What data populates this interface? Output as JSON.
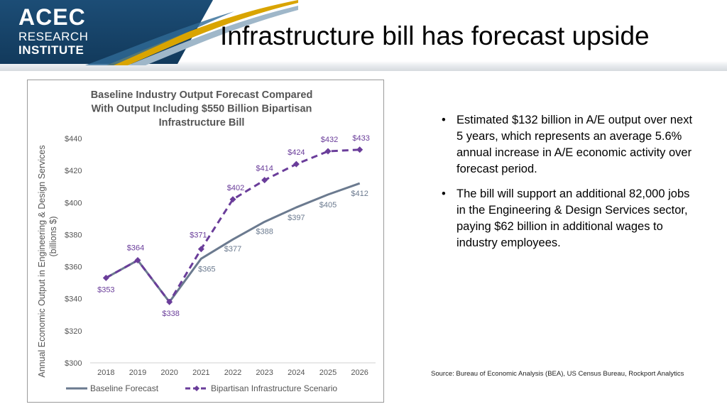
{
  "logo": {
    "line1": "ACEC",
    "line2": "RESEARCH",
    "line3": "INSTITUTE"
  },
  "page_title": "Infrastructure bill has forecast upside",
  "bullets": [
    "Estimated $132 billion in A/E output over next 5 years, which represents an average 5.6% annual increase in A/E economic activity over forecast period.",
    "The bill will support an additional 82,000 jobs in the Engineering & Design Services sector, paying $62 billion in additional wages to industry employees."
  ],
  "bullet_glyph": "•",
  "source": "Source: Bureau of Economic Analysis (BEA), US Census Bureau, Rockport Analytics",
  "colors": {
    "baseline": "#6b7a8f",
    "scenario": "#6a3d9a",
    "logo_bg": "#1c4d76"
  },
  "chart_data": {
    "type": "line",
    "title": [
      "Baseline Industry Output Forecast Compared",
      "With Output Including $550 Billion Bipartisan",
      "Infrastructure Bill"
    ],
    "ylabel": [
      "Annual Economic Output in Engineering & Design Services",
      "(billions $)"
    ],
    "ylim": [
      300,
      440
    ],
    "yticks": [
      300,
      320,
      340,
      360,
      380,
      400,
      420,
      440
    ],
    "ytick_labels": [
      "$300",
      "$320",
      "$340",
      "$360",
      "$380",
      "$400",
      "$420",
      "$440"
    ],
    "categories": [
      "2018",
      "2019",
      "2020",
      "2021",
      "2022",
      "2023",
      "2024",
      "2025",
      "2026"
    ],
    "series": [
      {
        "name": "Baseline Forecast",
        "values": [
          353,
          364,
          338,
          365,
          377,
          388,
          397,
          405,
          412
        ],
        "labels": [
          null,
          null,
          null,
          "$365",
          "$377",
          "$388",
          "$397",
          "$405",
          "$412"
        ],
        "style": "solid"
      },
      {
        "name": "Bipartisan Infrastructure Scenario",
        "values": [
          353,
          364,
          338,
          371,
          402,
          414,
          424,
          432,
          433
        ],
        "labels": [
          "$353",
          "$364",
          "$338",
          "$371",
          "$402",
          "$414",
          "$424",
          "$432",
          "$433"
        ],
        "style": "dashed"
      }
    ],
    "legend": "bottom"
  }
}
